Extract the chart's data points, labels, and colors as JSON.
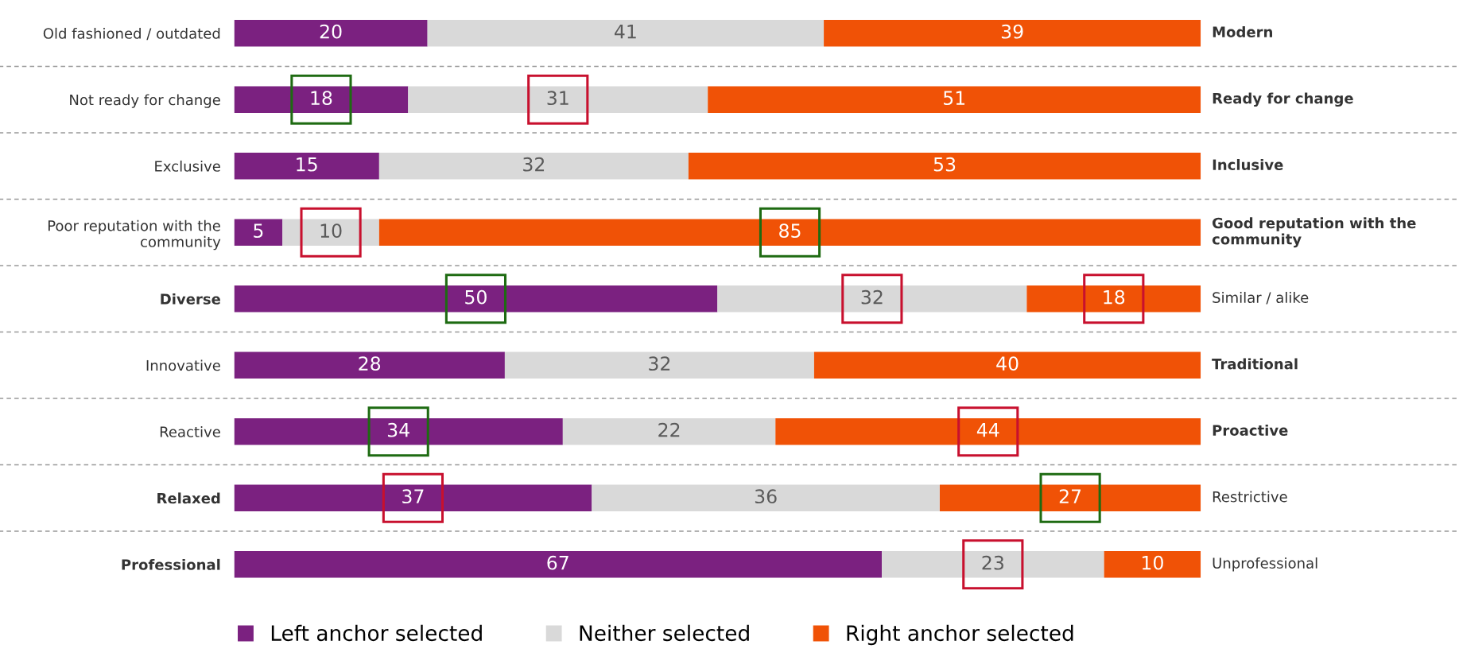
{
  "chart_data": {
    "type": "bar",
    "orientation": "horizontal",
    "stacked": true,
    "data_labels": true,
    "legend": "bottom",
    "grid": "y",
    "categories": [
      "Old fashioned / outdated",
      "Not ready for change",
      "Exclusive",
      "Poor reputation with the community",
      "Diverse",
      "Innovative",
      "Reactive",
      "Relaxed",
      "Professional"
    ],
    "series": [
      {
        "name": "Left anchor selected",
        "color": "#7b2180",
        "values": [
          20,
          18,
          15,
          5,
          50,
          28,
          34,
          37,
          67
        ]
      },
      {
        "name": "Neither selected",
        "color": "#d9d9d9",
        "values": [
          41,
          31,
          32,
          10,
          32,
          32,
          22,
          36,
          23
        ]
      },
      {
        "name": "Right anchor selected",
        "color": "#f05206",
        "values": [
          39,
          51,
          53,
          85,
          18,
          40,
          44,
          27,
          10
        ]
      }
    ],
    "annotations": [
      "Modern",
      "Ready for change",
      "Inclusive",
      "Good reputation with the community",
      "Similar / alike",
      "Traditional",
      "Proactive",
      "Restrictive",
      "Unprofessional"
    ]
  }
}
